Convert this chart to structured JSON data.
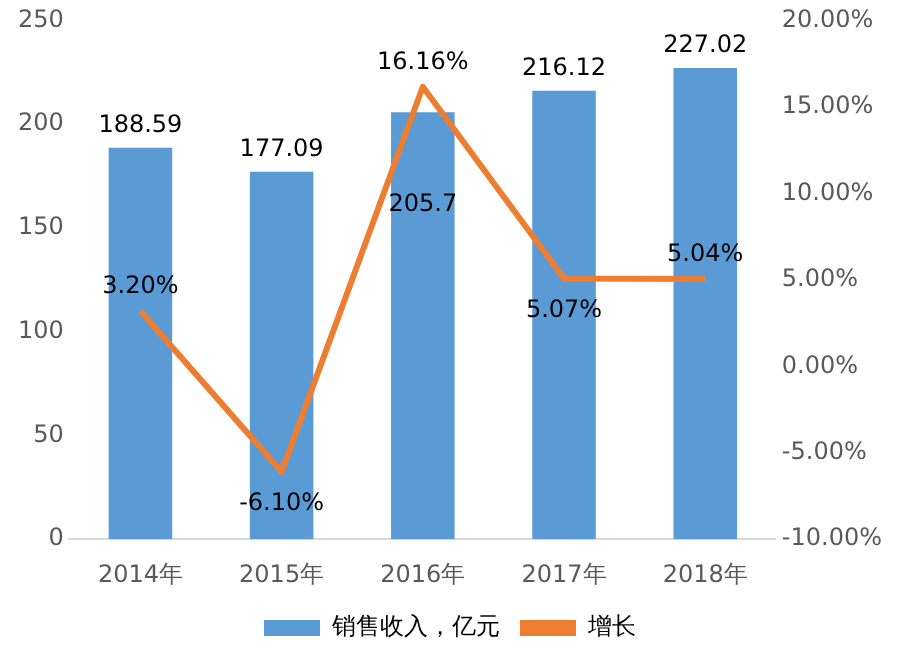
{
  "chart_data": {
    "type": "bar",
    "categories": [
      "2014年",
      "2015年",
      "2016年",
      "2017年",
      "2018年"
    ],
    "series": [
      {
        "name": "销售收入，亿元",
        "color": "#5b9bd5",
        "values": [
          188.59,
          177.09,
          205.7,
          216.12,
          227.02
        ],
        "value_labels": [
          "188.59",
          "177.09",
          "205.7",
          "216.12",
          "227.02"
        ]
      },
      {
        "name": "增长",
        "type": "line",
        "axis": "y2",
        "color": "#ed7d31",
        "values": [
          3.2,
          -6.1,
          16.16,
          5.07,
          5.04
        ],
        "value_labels": [
          "3.20%",
          "-6.10%",
          "16.16%",
          "5.07%",
          "5.04%"
        ]
      }
    ],
    "ylim": [
      0,
      250
    ],
    "yticks": [
      0,
      50,
      100,
      150,
      200,
      250
    ],
    "y2lim": [
      -10,
      20
    ],
    "y2ticks": [
      {
        "value": -10,
        "label": "-10.00%"
      },
      {
        "value": -5,
        "label": "-5.00%"
      },
      {
        "value": 0,
        "label": "0.00%"
      },
      {
        "value": 5,
        "label": "5.00%"
      },
      {
        "value": 10,
        "label": "10.00%"
      },
      {
        "value": 15,
        "label": "15.00%"
      },
      {
        "value": 20,
        "label": "20.00%"
      }
    ],
    "grid": false,
    "legend": "bottom",
    "marker": "none",
    "line_style": "solid"
  }
}
